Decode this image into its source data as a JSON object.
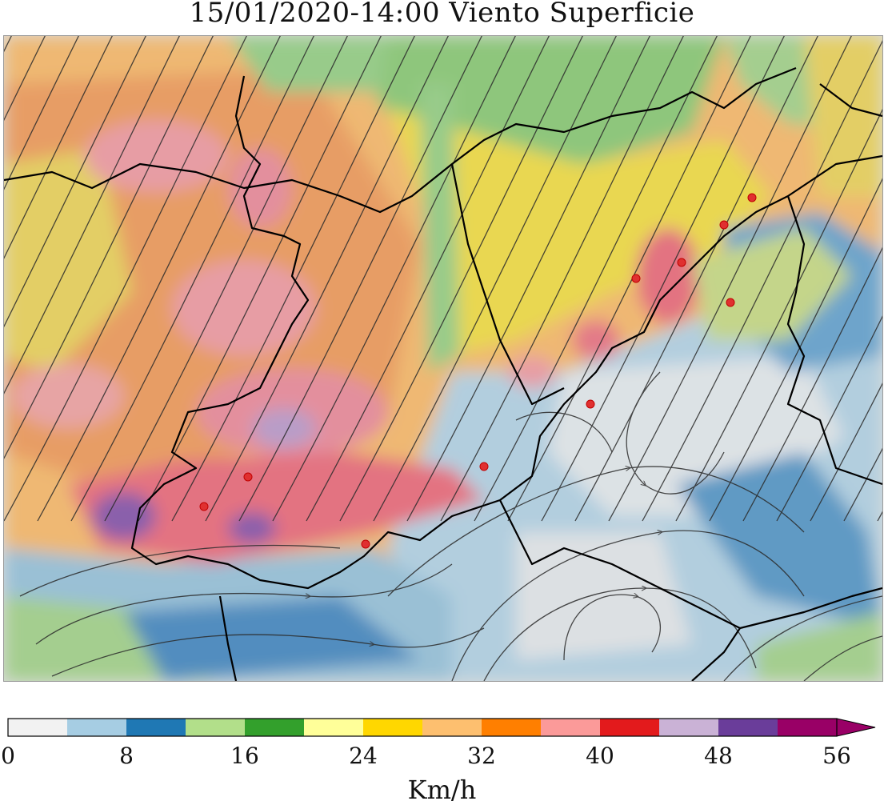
{
  "title": "15/01/2020-14:00 Viento Superficie",
  "map": {
    "stations_count_note": "",
    "layers": [
      "wind-speed-field",
      "streamlines",
      "borders",
      "stations"
    ]
  },
  "colorbar": {
    "units": "Km/h",
    "ticks": [
      "0",
      "8",
      "16",
      "24",
      "32",
      "40",
      "48",
      "56"
    ],
    "bins": [
      {
        "from": 0,
        "to": 4,
        "color": "#f2f2f2"
      },
      {
        "from": 4,
        "to": 8,
        "color": "#a6cde3"
      },
      {
        "from": 8,
        "to": 12,
        "color": "#1f78b4"
      },
      {
        "from": 12,
        "to": 16,
        "color": "#b2df8a"
      },
      {
        "from": 16,
        "to": 20,
        "color": "#33a02c"
      },
      {
        "from": 20,
        "to": 24,
        "color": "#ffff99"
      },
      {
        "from": 24,
        "to": 28,
        "color": "#ffd700"
      },
      {
        "from": 28,
        "to": 32,
        "color": "#fdbf6f"
      },
      {
        "from": 32,
        "to": 36,
        "color": "#ff7f00"
      },
      {
        "from": 36,
        "to": 40,
        "color": "#fb9a99"
      },
      {
        "from": 40,
        "to": 44,
        "color": "#e31a1c"
      },
      {
        "from": 44,
        "to": 48,
        "color": "#cab2d6"
      },
      {
        "from": 48,
        "to": 52,
        "color": "#6a3d9a"
      },
      {
        "from": 52,
        "to": 56,
        "color": "#990066"
      }
    ],
    "extend": "max"
  }
}
